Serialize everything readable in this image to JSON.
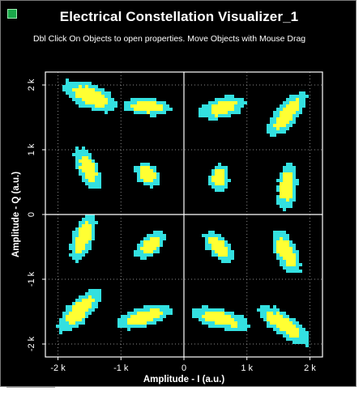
{
  "window": {
    "title": "Electrical Constellation Visualizer_1",
    "subtitle": "Dbl Click On Objects to open properties.  Move Objects with Mouse Drag"
  },
  "colors": {
    "background": "#000000",
    "plot_border": "#ffffff",
    "grid": "#8a8a8a",
    "cluster_outer": "#33e0e0",
    "cluster_inner": "#ffff33",
    "text": "#ffffff"
  },
  "chart_data": {
    "type": "scatter",
    "xlabel": "Amplitude - I (a.u.)",
    "ylabel": "Amplitude - Q (a.u.)",
    "xlim": [
      -2200,
      2200
    ],
    "ylim": [
      -2200,
      2200
    ],
    "xticks": [
      {
        "value": -2000,
        "label": "-2 k"
      },
      {
        "value": -1000,
        "label": "-1 k"
      },
      {
        "value": 0,
        "label": "0"
      },
      {
        "value": 1000,
        "label": "1 k"
      },
      {
        "value": 2000,
        "label": "2 k"
      }
    ],
    "yticks": [
      {
        "value": 2000,
        "label": "2 k"
      },
      {
        "value": 1000,
        "label": "1 k"
      },
      {
        "value": 0,
        "label": "0"
      },
      {
        "value": -1000,
        "label": "-1 k"
      },
      {
        "value": -2000,
        "label": "-2 k"
      }
    ],
    "grid": true,
    "clusters": [
      {
        "x": -1480,
        "y": 1820,
        "w": 900,
        "h": 380,
        "rot": -25
      },
      {
        "x": -580,
        "y": 1660,
        "w": 760,
        "h": 260,
        "rot": -5
      },
      {
        "x": 620,
        "y": 1650,
        "w": 740,
        "h": 320,
        "rot": 15
      },
      {
        "x": 1630,
        "y": 1540,
        "w": 880,
        "h": 330,
        "rot": 50
      },
      {
        "x": -1520,
        "y": 700,
        "w": 720,
        "h": 320,
        "rot": -65
      },
      {
        "x": -580,
        "y": 620,
        "w": 440,
        "h": 340,
        "rot": -40
      },
      {
        "x": 560,
        "y": 560,
        "w": 460,
        "h": 300,
        "rot": 80
      },
      {
        "x": 1640,
        "y": 430,
        "w": 760,
        "h": 300,
        "rot": 85
      },
      {
        "x": -1600,
        "y": -360,
        "w": 780,
        "h": 320,
        "rot": 70
      },
      {
        "x": -530,
        "y": -480,
        "w": 560,
        "h": 300,
        "rot": 40
      },
      {
        "x": 550,
        "y": -500,
        "w": 580,
        "h": 300,
        "rot": -45
      },
      {
        "x": 1620,
        "y": -580,
        "w": 780,
        "h": 330,
        "rot": -65
      },
      {
        "x": -1650,
        "y": -1480,
        "w": 900,
        "h": 340,
        "rot": 45
      },
      {
        "x": -620,
        "y": -1580,
        "w": 920,
        "h": 300,
        "rot": 15
      },
      {
        "x": 580,
        "y": -1610,
        "w": 920,
        "h": 300,
        "rot": -15
      },
      {
        "x": 1580,
        "y": -1700,
        "w": 980,
        "h": 320,
        "rot": -35
      }
    ]
  }
}
